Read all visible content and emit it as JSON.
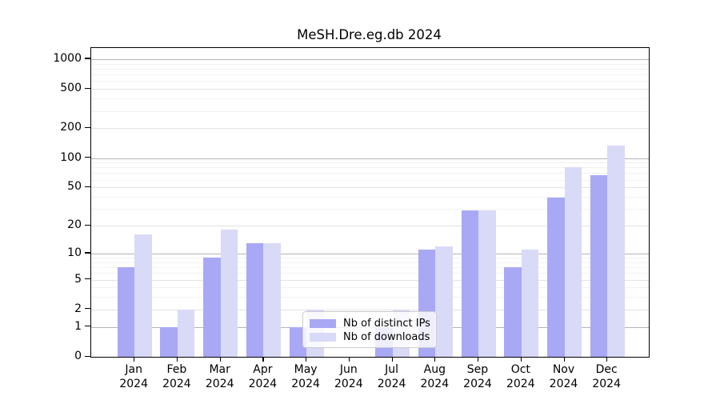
{
  "title": "MeSH.Dre.eg.db 2024",
  "chart_data": {
    "type": "bar",
    "title": "MeSH.Dre.eg.db 2024",
    "categories": [
      "Jan",
      "Feb",
      "Mar",
      "Apr",
      "May",
      "Jun",
      "Jul",
      "Aug",
      "Sep",
      "Oct",
      "Nov",
      "Dec"
    ],
    "category_year": "2024",
    "series": [
      {
        "name": "Nb of distinct IPs",
        "color": "#a8a8f5",
        "values": [
          7,
          1,
          9,
          13,
          1,
          0,
          1,
          11,
          29,
          7,
          39,
          67
        ]
      },
      {
        "name": "Nb of downloads",
        "color": "#d9d9f8",
        "values": [
          16,
          2,
          18,
          13,
          2,
          0,
          2,
          12,
          29,
          11,
          80,
          134
        ]
      }
    ],
    "y_ticks": [
      0,
      1,
      2,
      5,
      10,
      20,
      50,
      100,
      200,
      500,
      1000
    ],
    "y_scale": "log10(value+1)",
    "ylim": [
      0,
      1300
    ],
    "xlabel": "",
    "ylabel": "",
    "grid": true,
    "legend_position": "lower center",
    "grid_color_major": "#b4b4b4",
    "grid_color_mid": "#e3e3e3",
    "grid_color_minor": "#f1f1f1"
  },
  "legend": {
    "items": [
      {
        "label": "Nb of distinct IPs"
      },
      {
        "label": "Nb of downloads"
      }
    ]
  }
}
